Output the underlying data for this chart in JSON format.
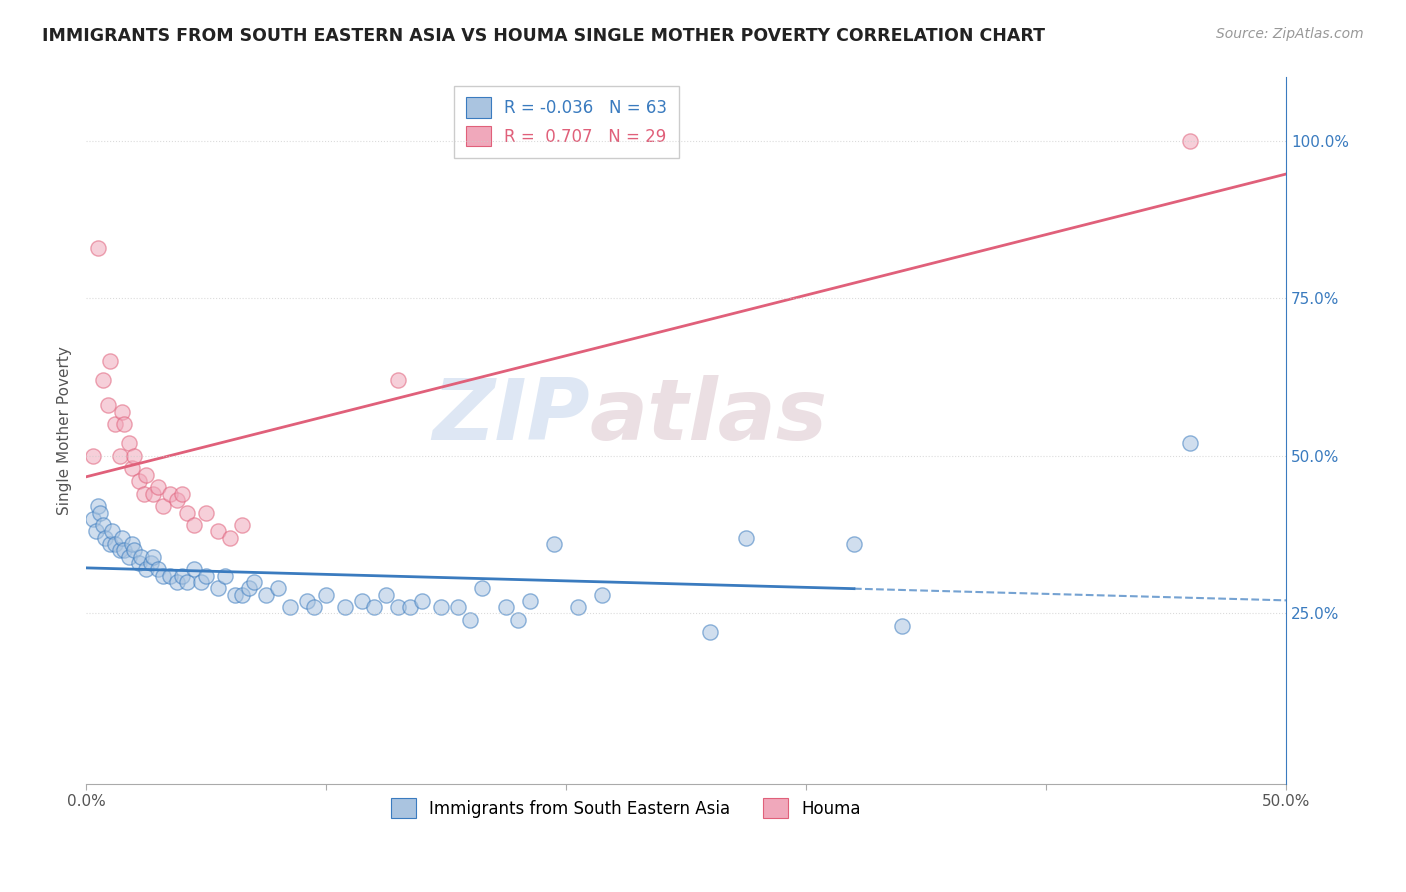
{
  "title": "IMMIGRANTS FROM SOUTH EASTERN ASIA VS HOUMA SINGLE MOTHER POVERTY CORRELATION CHART",
  "source": "Source: ZipAtlas.com",
  "ylabel": "Single Mother Poverty",
  "right_ytick_vals": [
    0.25,
    0.5,
    0.75,
    1.0
  ],
  "right_ytick_labels": [
    "25.0%",
    "50.0%",
    "75.0%",
    "100.0%"
  ],
  "xlim": [
    0.0,
    0.5
  ],
  "ylim": [
    -0.02,
    1.1
  ],
  "watermark_zip": "ZIP",
  "watermark_atlas": "atlas",
  "legend_blue_r": "-0.036",
  "legend_blue_n": "63",
  "legend_pink_r": "0.707",
  "legend_pink_n": "29",
  "blue_scatter_x": [
    0.003,
    0.004,
    0.005,
    0.006,
    0.007,
    0.008,
    0.01,
    0.011,
    0.012,
    0.014,
    0.015,
    0.016,
    0.018,
    0.019,
    0.02,
    0.022,
    0.023,
    0.025,
    0.027,
    0.028,
    0.03,
    0.032,
    0.035,
    0.038,
    0.04,
    0.042,
    0.045,
    0.048,
    0.05,
    0.055,
    0.058,
    0.062,
    0.065,
    0.068,
    0.07,
    0.075,
    0.08,
    0.085,
    0.092,
    0.095,
    0.1,
    0.108,
    0.115,
    0.12,
    0.125,
    0.13,
    0.135,
    0.14,
    0.148,
    0.155,
    0.16,
    0.165,
    0.175,
    0.18,
    0.185,
    0.195,
    0.205,
    0.215,
    0.26,
    0.275,
    0.32,
    0.34,
    0.46
  ],
  "blue_scatter_y": [
    0.4,
    0.38,
    0.42,
    0.41,
    0.39,
    0.37,
    0.36,
    0.38,
    0.36,
    0.35,
    0.37,
    0.35,
    0.34,
    0.36,
    0.35,
    0.33,
    0.34,
    0.32,
    0.33,
    0.34,
    0.32,
    0.31,
    0.31,
    0.3,
    0.31,
    0.3,
    0.32,
    0.3,
    0.31,
    0.29,
    0.31,
    0.28,
    0.28,
    0.29,
    0.3,
    0.28,
    0.29,
    0.26,
    0.27,
    0.26,
    0.28,
    0.26,
    0.27,
    0.26,
    0.28,
    0.26,
    0.26,
    0.27,
    0.26,
    0.26,
    0.24,
    0.29,
    0.26,
    0.24,
    0.27,
    0.36,
    0.26,
    0.28,
    0.22,
    0.37,
    0.36,
    0.23,
    0.52
  ],
  "pink_scatter_x": [
    0.003,
    0.005,
    0.007,
    0.009,
    0.01,
    0.012,
    0.014,
    0.015,
    0.016,
    0.018,
    0.019,
    0.02,
    0.022,
    0.024,
    0.025,
    0.028,
    0.03,
    0.032,
    0.035,
    0.038,
    0.04,
    0.042,
    0.045,
    0.05,
    0.055,
    0.06,
    0.065,
    0.13,
    0.46
  ],
  "pink_scatter_y": [
    0.5,
    0.83,
    0.62,
    0.58,
    0.65,
    0.55,
    0.5,
    0.57,
    0.55,
    0.52,
    0.48,
    0.5,
    0.46,
    0.44,
    0.47,
    0.44,
    0.45,
    0.42,
    0.44,
    0.43,
    0.44,
    0.41,
    0.39,
    0.41,
    0.38,
    0.37,
    0.39,
    0.62,
    1.0
  ],
  "blue_color": "#aac4e0",
  "pink_color": "#f0a8bb",
  "blue_line_color": "#3a7bbf",
  "pink_line_color": "#e0607a",
  "blue_line_solid_end": 0.32,
  "background_color": "#ffffff",
  "grid_color": "#cccccc",
  "bottom_legend_label1": "Immigrants from South Eastern Asia",
  "bottom_legend_label2": "Houma"
}
